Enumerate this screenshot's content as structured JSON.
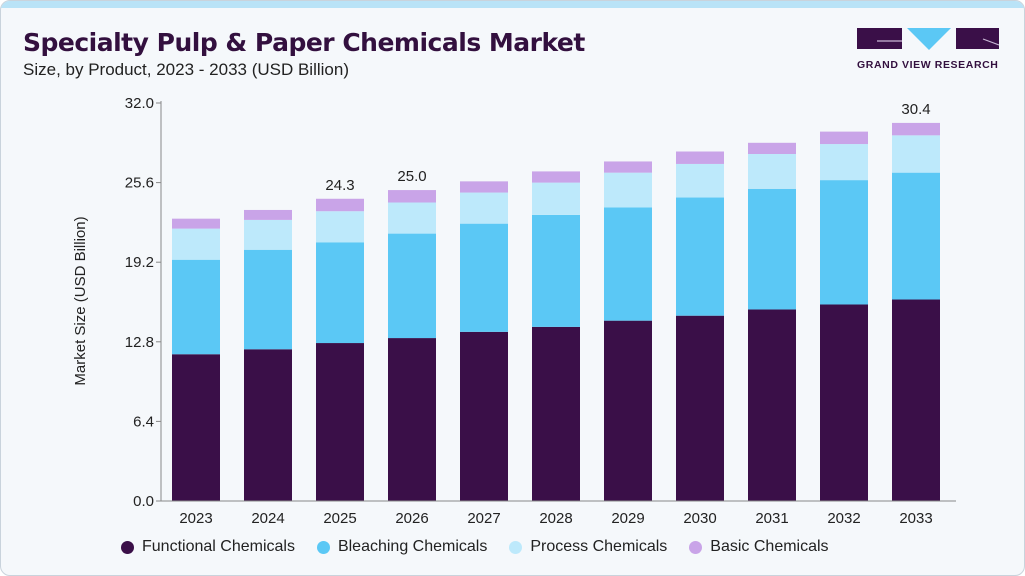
{
  "header": {
    "title": "Specialty Pulp & Paper Chemicals Market",
    "subtitle": "Size, by Product, 2023 - 2033 (USD Billion)"
  },
  "logo": {
    "text": "GRAND VIEW RESEARCH",
    "colors": {
      "dark": "#3a0f48",
      "accent": "#5bc8f5"
    }
  },
  "chart_data": {
    "type": "bar",
    "stacked": true,
    "title": "Specialty Pulp & Paper Chemicals Market",
    "subtitle": "Size, by Product, 2023 - 2033 (USD Billion)",
    "xlabel": "",
    "ylabel": "Market Size (USD Billion)",
    "ylim": [
      0,
      32
    ],
    "yticks": [
      "0.0",
      "6.4",
      "12.8",
      "19.2",
      "25.6",
      "32.0"
    ],
    "grid": false,
    "legend_placement": "bottom",
    "categories": [
      "2023",
      "2024",
      "2025",
      "2026",
      "2027",
      "2028",
      "2029",
      "2030",
      "2031",
      "2032",
      "2033"
    ],
    "series": [
      {
        "name": "Functional Chemicals",
        "color": "#3a0f48",
        "values": [
          11.8,
          12.2,
          12.7,
          13.1,
          13.6,
          14.0,
          14.5,
          14.9,
          15.4,
          15.8,
          16.2
        ]
      },
      {
        "name": "Bleaching Chemicals",
        "color": "#5bc8f5",
        "values": [
          7.6,
          8.0,
          8.1,
          8.4,
          8.7,
          9.0,
          9.1,
          9.5,
          9.7,
          10.0,
          10.2
        ]
      },
      {
        "name": "Process Chemicals",
        "color": "#bde9fb",
        "values": [
          2.5,
          2.4,
          2.5,
          2.5,
          2.5,
          2.6,
          2.8,
          2.7,
          2.8,
          2.9,
          3.0
        ]
      },
      {
        "name": "Basic Chemicals",
        "color": "#c9a4e8",
        "values": [
          0.8,
          0.8,
          1.0,
          1.0,
          0.9,
          0.9,
          0.9,
          1.0,
          0.9,
          1.0,
          1.0
        ]
      }
    ],
    "data_labels": [
      {
        "category": "2025",
        "text": "24.3"
      },
      {
        "category": "2026",
        "text": "25.0"
      },
      {
        "category": "2033",
        "text": "30.4"
      }
    ]
  }
}
